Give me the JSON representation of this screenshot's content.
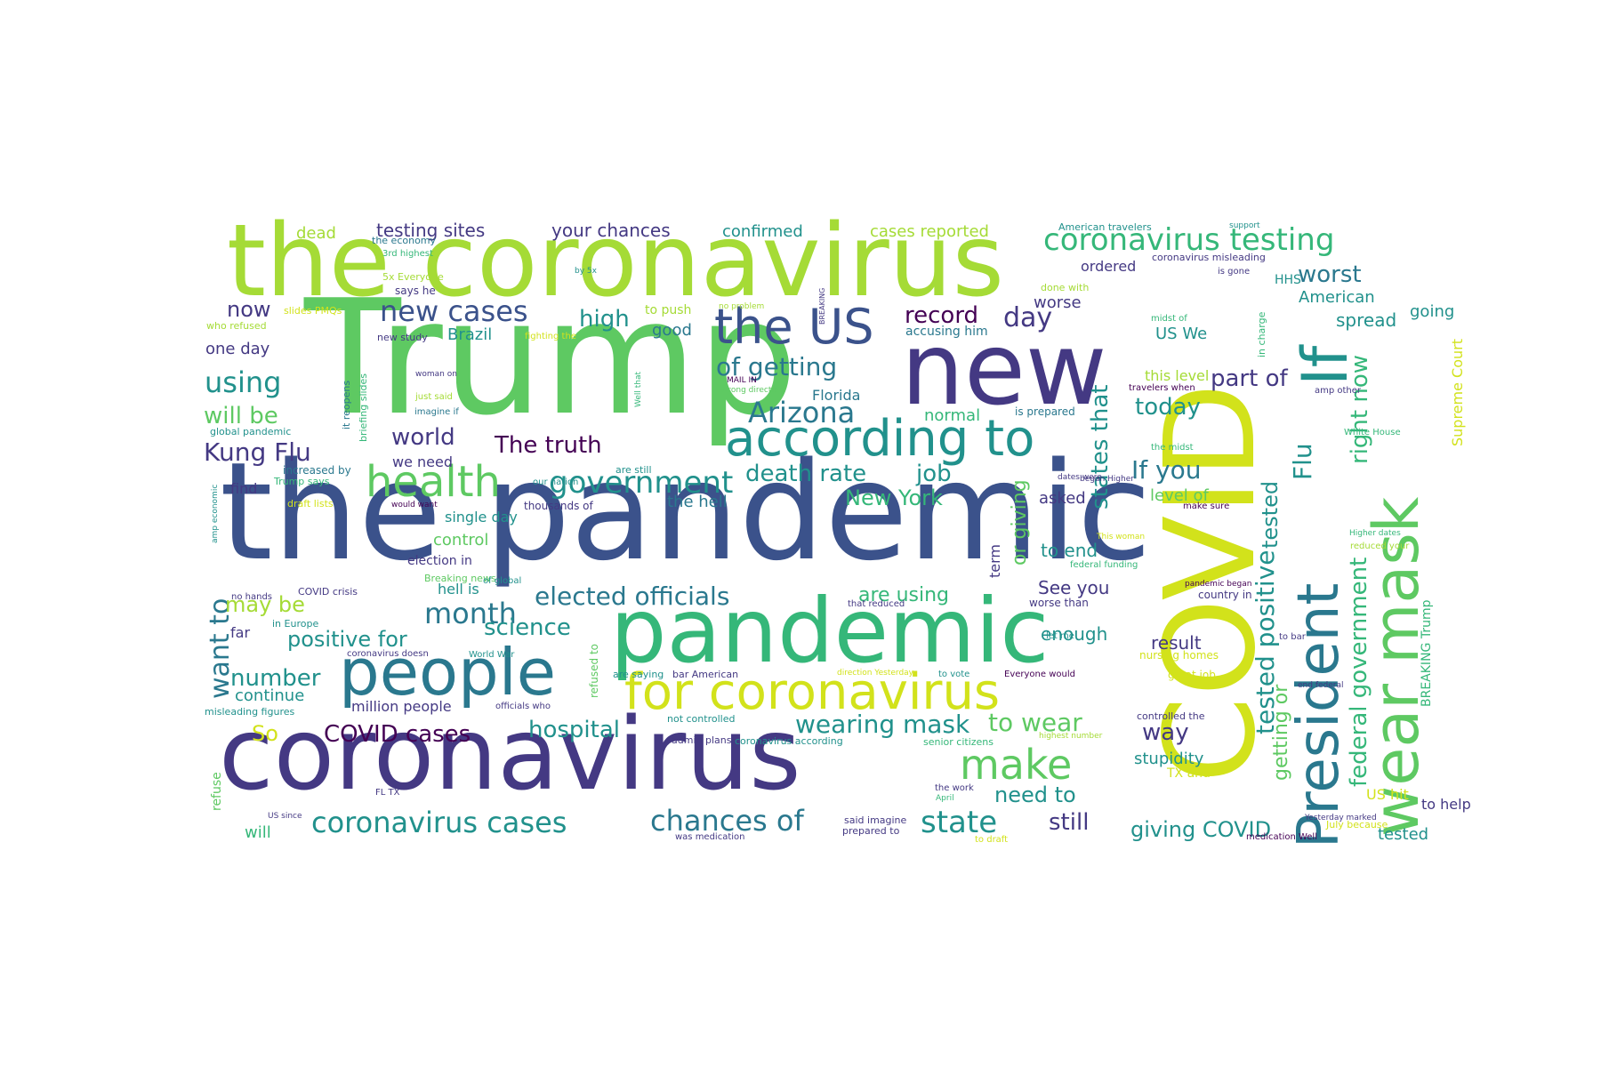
{
  "colors": {
    "yellow": "#d2e21b",
    "lime": "#a5db36",
    "green": "#5ec962",
    "seagreen": "#35b779",
    "teal": "#21918c",
    "cyan": "#2a788e",
    "blue": "#3b528b",
    "indigo": "#443983",
    "purple": "#440154"
  },
  "words": [
    {
      "text": "the pandemic",
      "color": "blue"
    },
    {
      "text": "Trump",
      "color": "green"
    },
    {
      "text": "COVID",
      "color": "yellow"
    },
    {
      "text": "the coronavirus",
      "color": "lime"
    },
    {
      "text": "coronavirus",
      "color": "indigo"
    },
    {
      "text": "pandemic",
      "color": "seagreen"
    },
    {
      "text": "new",
      "color": "indigo"
    },
    {
      "text": "people",
      "color": "cyan"
    },
    {
      "text": "President",
      "color": "cyan"
    },
    {
      "text": "wear mask",
      "color": "green"
    },
    {
      "text": "for coronavirus",
      "color": "yellow"
    },
    {
      "text": "according to",
      "color": "teal"
    },
    {
      "text": "the US",
      "color": "blue"
    },
    {
      "text": "health",
      "color": "green"
    },
    {
      "text": "If",
      "color": "teal"
    },
    {
      "text": "government",
      "color": "teal"
    },
    {
      "text": "coronavirus testing",
      "color": "seagreen"
    },
    {
      "text": "make",
      "color": "green"
    },
    {
      "text": "coronavirus cases",
      "color": "teal"
    },
    {
      "text": "chances of",
      "color": "cyan"
    },
    {
      "text": "state",
      "color": "teal"
    },
    {
      "text": "elected officials",
      "color": "cyan"
    },
    {
      "text": "new cases",
      "color": "blue"
    },
    {
      "text": "Arizona",
      "color": "cyan"
    },
    {
      "text": "of getting",
      "color": "cyan"
    },
    {
      "text": "want to",
      "color": "cyan"
    },
    {
      "text": "using",
      "color": "teal"
    },
    {
      "text": "month",
      "color": "cyan"
    },
    {
      "text": "wearing mask",
      "color": "teal"
    },
    {
      "text": "The truth",
      "color": "purple"
    },
    {
      "text": "death rate",
      "color": "teal"
    },
    {
      "text": "job",
      "color": "teal"
    },
    {
      "text": "If you",
      "color": "cyan"
    },
    {
      "text": "tested positive",
      "color": "teal"
    },
    {
      "text": "Flu",
      "color": "teal"
    },
    {
      "text": "federal government",
      "color": "seagreen"
    },
    {
      "text": "right now",
      "color": "seagreen"
    },
    {
      "text": "states that",
      "color": "teal"
    },
    {
      "text": "giving COVID",
      "color": "teal"
    },
    {
      "text": "hospital",
      "color": "teal"
    },
    {
      "text": "record",
      "color": "purple"
    },
    {
      "text": "day",
      "color": "indigo"
    },
    {
      "text": "part of",
      "color": "indigo"
    },
    {
      "text": "worst",
      "color": "cyan"
    },
    {
      "text": "today",
      "color": "teal"
    },
    {
      "text": "to wear",
      "color": "green"
    },
    {
      "text": "So",
      "color": "yellow"
    },
    {
      "text": "COVID cases",
      "color": "purple"
    },
    {
      "text": "number",
      "color": "teal"
    },
    {
      "text": "positive for",
      "color": "teal"
    },
    {
      "text": "science",
      "color": "teal"
    },
    {
      "text": "may be",
      "color": "lime"
    },
    {
      "text": "Kung Flu",
      "color": "indigo"
    },
    {
      "text": "will be",
      "color": "green"
    },
    {
      "text": "now",
      "color": "indigo"
    },
    {
      "text": "high",
      "color": "teal"
    },
    {
      "text": "world",
      "color": "indigo"
    },
    {
      "text": "New York",
      "color": "seagreen"
    },
    {
      "text": "still",
      "color": "indigo"
    },
    {
      "text": "need to",
      "color": "teal"
    },
    {
      "text": "way",
      "color": "indigo"
    },
    {
      "text": "stupidity",
      "color": "teal"
    },
    {
      "text": "getting or",
      "color": "green"
    },
    {
      "text": "tested",
      "color": "teal"
    },
    {
      "text": "or giving",
      "color": "green"
    },
    {
      "text": "to end",
      "color": "teal"
    },
    {
      "text": "result",
      "color": "indigo"
    },
    {
      "text": "enough",
      "color": "teal"
    },
    {
      "text": "See you",
      "color": "indigo"
    },
    {
      "text": "are using",
      "color": "seagreen"
    },
    {
      "text": "asked",
      "color": "indigo"
    },
    {
      "text": "level of",
      "color": "green"
    },
    {
      "text": "testing sites",
      "color": "indigo"
    },
    {
      "text": "your chances",
      "color": "indigo"
    },
    {
      "text": "confirmed",
      "color": "teal"
    },
    {
      "text": "cases reported",
      "color": "lime"
    },
    {
      "text": "dead",
      "color": "lime"
    },
    {
      "text": "one day",
      "color": "indigo"
    },
    {
      "text": "continue",
      "color": "teal"
    },
    {
      "text": "control",
      "color": "green"
    },
    {
      "text": "spread",
      "color": "teal"
    },
    {
      "text": "going",
      "color": "teal"
    },
    {
      "text": "US hit",
      "color": "yellow"
    },
    {
      "text": "to help",
      "color": "indigo"
    },
    {
      "text": "tested",
      "color": "teal"
    },
    {
      "text": "will",
      "color": "seagreen"
    },
    {
      "text": "refuse",
      "color": "green"
    },
    {
      "text": "normal",
      "color": "seagreen"
    },
    {
      "text": "ordered",
      "color": "indigo"
    },
    {
      "text": "American",
      "color": "teal"
    },
    {
      "text": "US We",
      "color": "teal"
    },
    {
      "text": "good",
      "color": "cyan"
    },
    {
      "text": "worse",
      "color": "indigo"
    },
    {
      "text": "accusing him",
      "color": "cyan"
    },
    {
      "text": "Brazil",
      "color": "teal"
    },
    {
      "text": "Florida",
      "color": "cyan"
    },
    {
      "text": "term",
      "color": "indigo"
    },
    {
      "text": "we need",
      "color": "indigo"
    },
    {
      "text": "find",
      "color": "indigo"
    },
    {
      "text": "the hell",
      "color": "cyan"
    },
    {
      "text": "election in",
      "color": "indigo"
    },
    {
      "text": "hell is",
      "color": "teal"
    },
    {
      "text": "single day",
      "color": "teal"
    },
    {
      "text": "far",
      "color": "indigo"
    },
    {
      "text": "million people",
      "color": "indigo"
    },
    {
      "text": "this level",
      "color": "lime"
    },
    {
      "text": "HHS",
      "color": "teal"
    },
    {
      "text": "Supreme Court",
      "color": "yellow"
    },
    {
      "text": "BREAKING Trump",
      "color": "seagreen"
    },
    {
      "text": "to push",
      "color": "lime"
    },
    {
      "text": "is prepared",
      "color": "cyan"
    },
    {
      "text": "refused to",
      "color": "green"
    },
    {
      "text": "the economy",
      "color": "cyan"
    },
    {
      "text": "3rd highest",
      "color": "seagreen"
    },
    {
      "text": "5x Everyone",
      "color": "lime"
    },
    {
      "text": "says he",
      "color": "indigo"
    },
    {
      "text": "slides PMQs",
      "color": "yellow"
    },
    {
      "text": "who refused",
      "color": "lime"
    },
    {
      "text": "new study",
      "color": "indigo"
    },
    {
      "text": "fighting the",
      "color": "yellow"
    },
    {
      "text": "it reopens",
      "color": "cyan"
    },
    {
      "text": "briefing slides",
      "color": "seagreen"
    },
    {
      "text": "woman on",
      "color": "indigo"
    },
    {
      "text": "just said",
      "color": "lime"
    },
    {
      "text": "imagine if",
      "color": "cyan"
    },
    {
      "text": "global pandemic",
      "color": "teal"
    },
    {
      "text": "increased by",
      "color": "cyan"
    },
    {
      "text": "Trump says",
      "color": "seagreen"
    },
    {
      "text": "draft lists",
      "color": "yellow"
    },
    {
      "text": "would want",
      "color": "purple"
    },
    {
      "text": "amp economic",
      "color": "teal"
    },
    {
      "text": "thousands of",
      "color": "indigo"
    },
    {
      "text": "our nation",
      "color": "teal"
    },
    {
      "text": "are still",
      "color": "teal"
    },
    {
      "text": "Breaking news",
      "color": "green"
    },
    {
      "text": "COVID crisis",
      "color": "indigo"
    },
    {
      "text": "no hands",
      "color": "indigo"
    },
    {
      "text": "of global",
      "color": "teal"
    },
    {
      "text": "in Europe",
      "color": "teal"
    },
    {
      "text": "coronavirus doesn",
      "color": "indigo"
    },
    {
      "text": "World War",
      "color": "teal"
    },
    {
      "text": "misleading figures",
      "color": "teal"
    },
    {
      "text": "officials who",
      "color": "indigo"
    },
    {
      "text": "are saying",
      "color": "teal"
    },
    {
      "text": "bar American",
      "color": "indigo"
    },
    {
      "text": "not controlled",
      "color": "teal"
    },
    {
      "text": "admin plans",
      "color": "indigo"
    },
    {
      "text": "coronavirus according",
      "color": "teal"
    },
    {
      "text": "senior citizens",
      "color": "seagreen"
    },
    {
      "text": "highest number",
      "color": "lime"
    },
    {
      "text": "FL TX",
      "color": "indigo"
    },
    {
      "text": "US since",
      "color": "indigo"
    },
    {
      "text": "the work",
      "color": "indigo"
    },
    {
      "text": "April",
      "color": "seagreen"
    },
    {
      "text": "said imagine",
      "color": "indigo"
    },
    {
      "text": "prepared to",
      "color": "indigo"
    },
    {
      "text": "to draft",
      "color": "yellow"
    },
    {
      "text": "was medication",
      "color": "indigo"
    },
    {
      "text": "direction Yesterday",
      "color": "yellow"
    },
    {
      "text": "to vote",
      "color": "teal"
    },
    {
      "text": "Everyone would",
      "color": "purple"
    },
    {
      "text": "July because",
      "color": "yellow"
    },
    {
      "text": "Yesterday marked",
      "color": "indigo"
    },
    {
      "text": "medication Well",
      "color": "purple"
    },
    {
      "text": "controlled the",
      "color": "indigo"
    },
    {
      "text": "TX and",
      "color": "yellow"
    },
    {
      "text": "great job",
      "color": "yellow"
    },
    {
      "text": "nursing homes",
      "color": "yellow"
    },
    {
      "text": "to bar",
      "color": "indigo"
    },
    {
      "text": "end federal",
      "color": "indigo"
    },
    {
      "text": "pandemic began",
      "color": "purple"
    },
    {
      "text": "country in",
      "color": "indigo"
    },
    {
      "text": "worse than",
      "color": "indigo"
    },
    {
      "text": "let me",
      "color": "teal"
    },
    {
      "text": "that reduced",
      "color": "indigo"
    },
    {
      "text": "federal funding",
      "color": "seagreen"
    },
    {
      "text": "This woman",
      "color": "yellow"
    },
    {
      "text": "make sure",
      "color": "purple"
    },
    {
      "text": "dates were",
      "color": "indigo"
    },
    {
      "text": "began Higher",
      "color": "indigo"
    },
    {
      "text": "the midst",
      "color": "seagreen"
    },
    {
      "text": "midst of",
      "color": "seagreen"
    },
    {
      "text": "travelers when",
      "color": "purple"
    },
    {
      "text": "White House",
      "color": "seagreen"
    },
    {
      "text": "Higher dates",
      "color": "seagreen"
    },
    {
      "text": "reduced your",
      "color": "lime"
    },
    {
      "text": "amp other",
      "color": "indigo"
    },
    {
      "text": "in charge",
      "color": "seagreen"
    },
    {
      "text": "is gone",
      "color": "indigo"
    },
    {
      "text": "coronavirus misleading",
      "color": "indigo"
    },
    {
      "text": "support",
      "color": "teal"
    },
    {
      "text": "American travelers",
      "color": "teal"
    },
    {
      "text": "done with",
      "color": "lime"
    },
    {
      "text": "by 5x",
      "color": "teal"
    },
    {
      "text": "BREAKING",
      "color": "indigo"
    },
    {
      "text": "no problem",
      "color": "lime"
    },
    {
      "text": "MAIL IN",
      "color": "purple"
    },
    {
      "text": "wrong direction",
      "color": "green"
    },
    {
      "text": "Well that",
      "color": "seagreen"
    }
  ]
}
